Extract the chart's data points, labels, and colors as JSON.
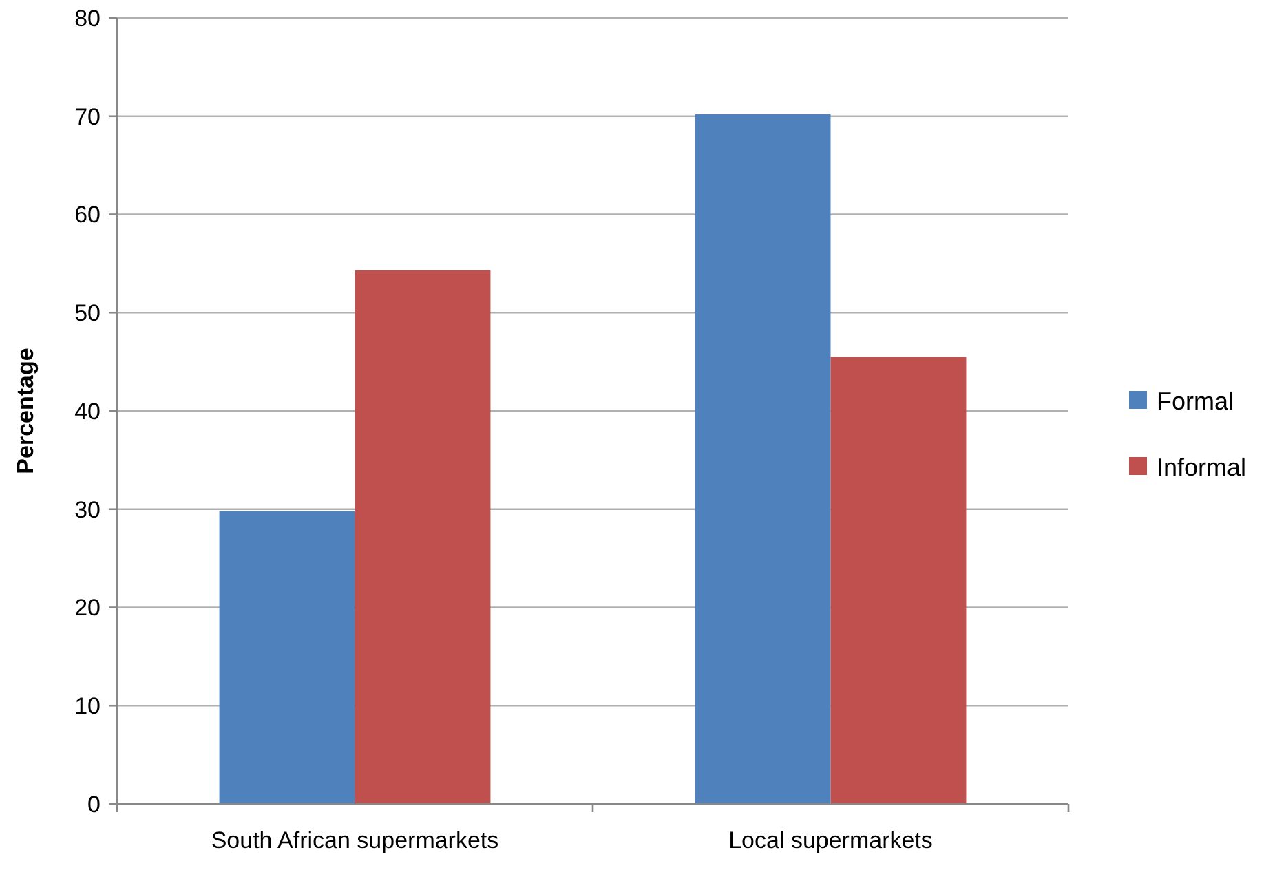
{
  "chart_data": {
    "type": "bar",
    "ylabel": "Percentage",
    "categories": [
      "South African supermarkets",
      "Local supermarkets"
    ],
    "series": [
      {
        "name": "Formal",
        "color": "#4f81bd",
        "values": [
          29.8,
          70.2
        ]
      },
      {
        "name": "Informal",
        "color": "#c0504d",
        "values": [
          54.3,
          45.5
        ]
      }
    ],
    "ylim": [
      0,
      80
    ],
    "yticks": [
      0,
      10,
      20,
      30,
      40,
      50,
      60,
      70,
      80
    ],
    "grid": "y",
    "legend": "right"
  }
}
